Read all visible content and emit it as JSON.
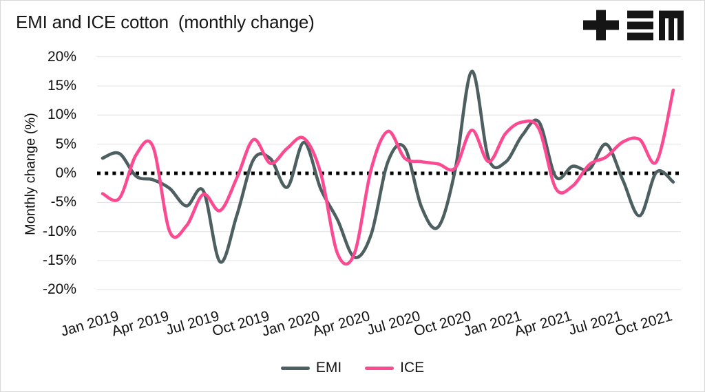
{
  "header": {
    "title": "EMI and ICE cotton  (monthly change)",
    "logo_name": "tem-logo"
  },
  "chart_data": {
    "type": "line",
    "title": "EMI and ICE cotton (monthly change)",
    "xlabel": "",
    "ylabel": "Monthly change (%)",
    "ylim": [
      -20,
      20
    ],
    "ytick_step": 5,
    "ytick_suffix": "%",
    "grid": true,
    "zero_line": "dotted-black",
    "legend_position": "bottom-center",
    "x": [
      "Jan 2019",
      "Feb 2019",
      "Mar 2019",
      "Apr 2019",
      "May 2019",
      "Jun 2019",
      "Jul 2019",
      "Aug 2019",
      "Sep 2019",
      "Oct 2019",
      "Nov 2019",
      "Dec 2019",
      "Jan 2020",
      "Feb 2020",
      "Mar 2020",
      "Apr 2020",
      "May 2020",
      "Jun 2020",
      "Jul 2020",
      "Aug 2020",
      "Sep 2020",
      "Oct 2020",
      "Nov 2020",
      "Dec 2020",
      "Jan 2021",
      "Feb 2021",
      "Mar 2021",
      "Apr 2021",
      "May 2021",
      "Jun 2021",
      "Jul 2021",
      "Aug 2021",
      "Sep 2021",
      "Oct 2021",
      "Nov 2021"
    ],
    "xtick_labels": [
      "Jan 2019",
      "Apr 2019",
      "Jul 2019",
      "Oct 2019",
      "Jan 2020",
      "Apr 2020",
      "Jul 2020",
      "Oct 2020",
      "Jan 2021",
      "Apr 2021",
      "Jul 2021",
      "Oct 2021"
    ],
    "series": [
      {
        "name": "EMI",
        "color": "#4d5f60",
        "values": [
          2.6,
          3.4,
          -0.5,
          -1.1,
          -2.6,
          -5.6,
          -3.0,
          -15.2,
          -7.2,
          2.4,
          2.5,
          -2.4,
          5.3,
          -2.7,
          -8.0,
          -14.4,
          -10.5,
          2.0,
          4.4,
          -5.8,
          -9.2,
          0.5,
          17.5,
          2.5,
          1.9,
          6.5,
          8.8,
          -0.6,
          1.2,
          0.7,
          5.0,
          -1.2,
          -7.3,
          0.2,
          -1.5
        ]
      },
      {
        "name": "ICE",
        "color": "#fb4a92",
        "values": [
          -3.5,
          -4.3,
          3.2,
          4.6,
          -10.0,
          -9.0,
          -3.6,
          -6.4,
          -0.8,
          5.8,
          1.7,
          4.3,
          6.0,
          0.0,
          -13.8,
          -13.8,
          0.7,
          7.2,
          2.6,
          2.0,
          1.6,
          0.9,
          7.4,
          2.0,
          6.8,
          8.8,
          7.6,
          -2.6,
          -2.2,
          1.5,
          2.8,
          5.4,
          5.8,
          2.0,
          14.3
        ]
      }
    ],
    "colors": {
      "grid": "#e0e0e0",
      "zero_line": "#000000",
      "text": "#111111"
    }
  }
}
